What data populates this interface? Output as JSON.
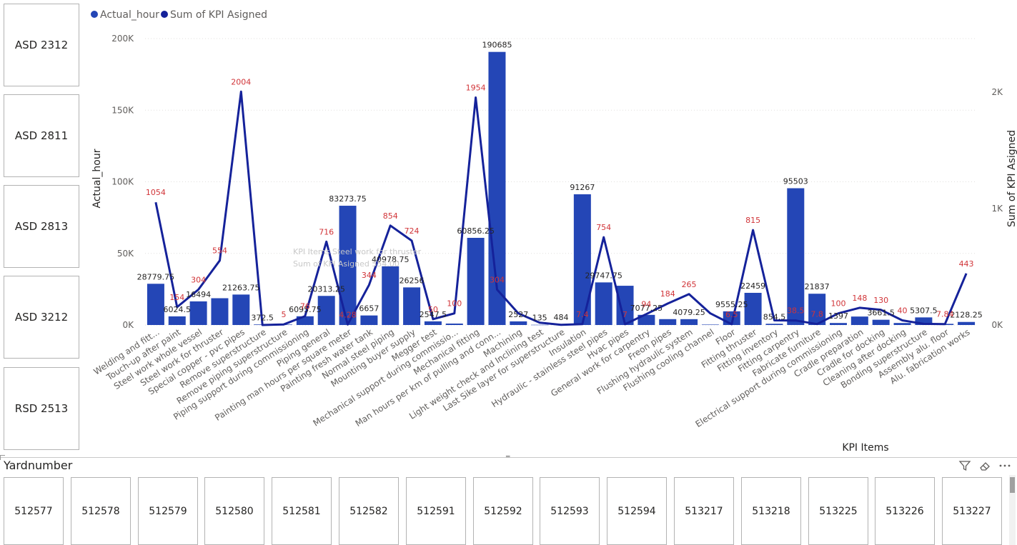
{
  "slicer_left": {
    "items": [
      "ASD 2312",
      "ASD 2811",
      "ASD 2813",
      "ASD 3212",
      "RSD 2513"
    ]
  },
  "tooltip_ghost": {
    "line1": "KPI Items    Steel work for thruster",
    "line2": "Sum of KPI Asigned    554.00"
  },
  "chart_data": {
    "type": "bar",
    "legend": [
      "Actual_hour",
      "Sum of KPI Asigned"
    ],
    "legend_position": "top-left",
    "colors": {
      "bar": "#2446b6",
      "line": "#15229a",
      "line_label": "#d13438",
      "bar_label": "#252423",
      "axis_text": "#605e5c",
      "grid": "#e1dfdd"
    },
    "xlabel": "KPI Items",
    "ylabel": "Actual_hour",
    "y2label": "Sum of KPI Asigned",
    "ylim": [
      0,
      200000
    ],
    "y2lim": [
      0,
      2460
    ],
    "yticks": [
      0,
      50000,
      100000,
      150000,
      200000
    ],
    "ytick_labels": [
      "0K",
      "50K",
      "100K",
      "150K",
      "200K"
    ],
    "y2ticks": [
      0,
      1000,
      2000
    ],
    "y2tick_labels": [
      "0K",
      "1K",
      "2K"
    ],
    "grid": true,
    "categories": [
      "Welding and fitt...",
      "Touch-up after paint",
      "Steel work whole vessel",
      "Steel work for thruster",
      "Special copper - pvc pipes",
      "Remove superstructure",
      "Remove piping superstructure",
      "Piping support during commissioning",
      "Piping general",
      "Painting man hours per square meter",
      "Painting fresh water tank",
      "Normal steel piping",
      "Mounting buyer supply",
      "Megger test",
      "Mechanical support during commissio...",
      "Mechanical fitting",
      "Man hours per km of pulling and conn...",
      "Machining",
      "Light weight check and Inclining test",
      "Last Sike layer for superstructure",
      "Insulation",
      "Hydraulic - stainless steel pipes",
      "Hvac pipes",
      "General work for carpentry",
      "Freon pipes",
      "Flushing hydraulic system",
      "Flushing cooling channel",
      "Floor",
      "Fitting thruster",
      "Fitting inventory",
      "Fitting carpentry",
      "Fabricate furniture",
      "Electrical support during commissioning",
      "Cradle preparation",
      "Cradle for docking",
      "Cleaning after docking",
      "Bonding superstructure",
      "Assembly alu. floor",
      "Alu. fabrication works"
    ],
    "series": [
      {
        "name": "Actual_hour",
        "type": "bar",
        "values": [
          28779.75,
          6024.5,
          16494,
          18700,
          21263.75,
          372.5,
          300,
          6095.75,
          20313.25,
          83273.75,
          6657,
          40978.75,
          26256,
          2547.5,
          1000,
          60856.25,
          190685,
          2527,
          135,
          484,
          91267,
          29747.75,
          27400,
          7077.25,
          4100,
          4079.25,
          300,
          9555.25,
          22459,
          854.5,
          95503,
          21837,
          1397,
          5900,
          3661.5,
          1400,
          5307.5,
          800,
          2128.25
        ],
        "labels": [
          "28779.75",
          "6024.5",
          "16494",
          "",
          "21263.75",
          "372.5",
          "",
          "6095.75",
          "20313.25",
          "83273.75",
          "6657",
          "40978.75",
          "26256",
          "2547.5",
          "",
          "60856.25",
          "190685",
          "2527",
          "135",
          "484",
          "91267",
          "29747.75",
          "",
          "7077.25",
          "",
          "4079.25",
          "",
          "9555.25",
          "22459",
          "854.5",
          "95503",
          "21837",
          "1397",
          "",
          "3661.5",
          "",
          "5307.5",
          "",
          "2128.25"
        ]
      },
      {
        "name": "Sum of KPI Asigned",
        "type": "line",
        "values": [
          1054,
          154,
          304,
          554,
          2004,
          0,
          5,
          76,
          716,
          4.28,
          344,
          854,
          724,
          50,
          100,
          1954,
          304,
          100,
          20,
          2,
          7.4,
          754,
          7,
          94,
          184,
          265,
          100,
          6.5,
          815,
          40,
          38.5,
          7.8,
          100,
          148,
          130,
          40,
          10,
          7.84,
          443
        ],
        "labels": [
          "1054",
          "154",
          "304",
          "554",
          "2004",
          "",
          "5",
          "76",
          "716",
          "4.28",
          "344",
          "854",
          "724",
          "50",
          "100",
          "1954",
          "304",
          "",
          "",
          "",
          "7.4",
          "754",
          "7",
          "94",
          "184",
          "265",
          "",
          "6.5",
          "815",
          "",
          "38.5",
          "7.8",
          "100",
          "148",
          "130",
          "40",
          "",
          "7.84",
          "443"
        ]
      }
    ]
  },
  "yardnumber": {
    "title": "Yardnumber",
    "items": [
      "512577",
      "512578",
      "512579",
      "512580",
      "512581",
      "512582",
      "512591",
      "512592",
      "512593",
      "512594",
      "513217",
      "513218",
      "513225",
      "513226",
      "513227"
    ]
  }
}
